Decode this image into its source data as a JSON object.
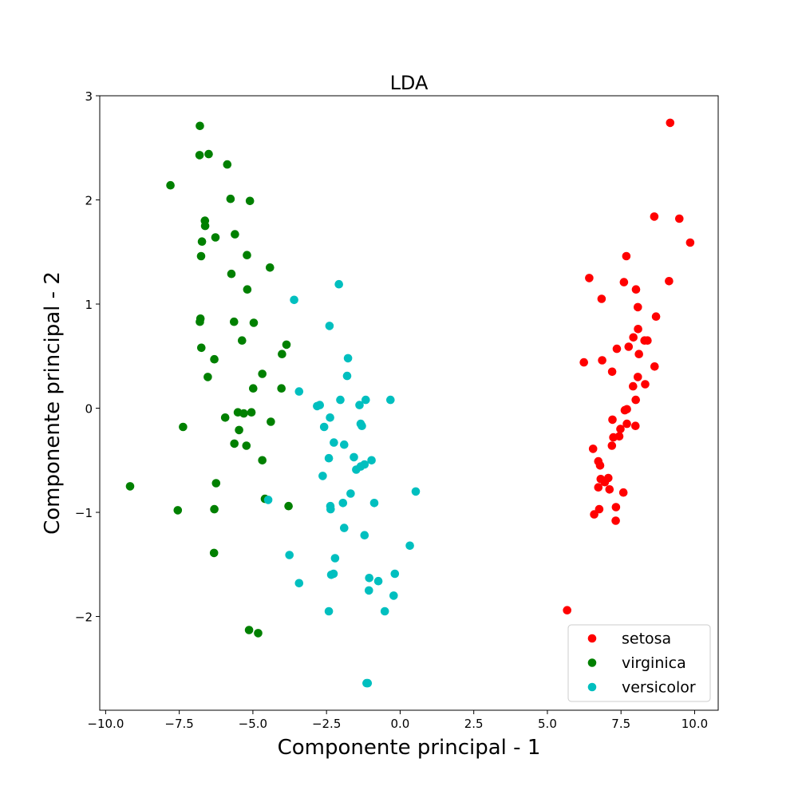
{
  "chart_data": {
    "type": "scatter",
    "title": "LDA",
    "xlabel": "Componente principal - 1",
    "ylabel": "Componente principal - 2",
    "xlim": [
      -10.2,
      10.8
    ],
    "ylim": [
      -2.9,
      3.0
    ],
    "xticks": [
      -10.0,
      -7.5,
      -5.0,
      -2.5,
      0.0,
      2.5,
      5.0,
      7.5,
      10.0
    ],
    "xtick_labels": [
      "−10.0",
      "−7.5",
      "−5.0",
      "−2.5",
      "0.0",
      "2.5",
      "5.0",
      "7.5",
      "10.0"
    ],
    "yticks": [
      -2,
      -1,
      0,
      1,
      2,
      3
    ],
    "ytick_labels": [
      "−2",
      "−1",
      "0",
      "1",
      "2",
      "3"
    ],
    "grid": false,
    "legend_position": "bottom-right",
    "series": [
      {
        "name": "setosa",
        "color": "#ff0000",
        "points": [
          [
            9.17,
            2.74
          ],
          [
            8.63,
            1.84
          ],
          [
            9.48,
            1.82
          ],
          [
            9.85,
            1.59
          ],
          [
            7.68,
            1.46
          ],
          [
            6.42,
            1.25
          ],
          [
            7.6,
            1.21
          ],
          [
            9.13,
            1.22
          ],
          [
            8.01,
            1.14
          ],
          [
            6.84,
            1.05
          ],
          [
            8.07,
            0.97
          ],
          [
            8.69,
            0.88
          ],
          [
            8.08,
            0.76
          ],
          [
            7.92,
            0.68
          ],
          [
            8.3,
            0.65
          ],
          [
            8.4,
            0.65
          ],
          [
            7.36,
            0.57
          ],
          [
            7.76,
            0.59
          ],
          [
            8.11,
            0.52
          ],
          [
            6.86,
            0.46
          ],
          [
            6.24,
            0.44
          ],
          [
            8.64,
            0.4
          ],
          [
            7.2,
            0.35
          ],
          [
            8.07,
            0.3
          ],
          [
            8.32,
            0.23
          ],
          [
            7.91,
            0.21
          ],
          [
            8.0,
            0.08
          ],
          [
            7.63,
            -0.02
          ],
          [
            7.7,
            -0.01
          ],
          [
            7.21,
            -0.11
          ],
          [
            7.7,
            -0.15
          ],
          [
            7.99,
            -0.17
          ],
          [
            7.48,
            -0.2
          ],
          [
            7.24,
            -0.28
          ],
          [
            7.44,
            -0.27
          ],
          [
            7.19,
            -0.36
          ],
          [
            6.55,
            -0.39
          ],
          [
            6.73,
            -0.51
          ],
          [
            6.79,
            -0.55
          ],
          [
            7.07,
            -0.67
          ],
          [
            6.81,
            -0.68
          ],
          [
            6.95,
            -0.71
          ],
          [
            6.73,
            -0.76
          ],
          [
            7.11,
            -0.78
          ],
          [
            7.58,
            -0.81
          ],
          [
            6.76,
            -0.97
          ],
          [
            7.33,
            -0.95
          ],
          [
            6.59,
            -1.02
          ],
          [
            7.32,
            -1.08
          ],
          [
            5.67,
            -1.94
          ]
        ]
      },
      {
        "name": "virginica",
        "color": "#008000",
        "points": [
          [
            -6.8,
            2.71
          ],
          [
            -6.5,
            2.44
          ],
          [
            -6.81,
            2.43
          ],
          [
            -5.87,
            2.34
          ],
          [
            -7.8,
            2.14
          ],
          [
            -5.76,
            2.01
          ],
          [
            -5.1,
            1.99
          ],
          [
            -6.63,
            1.8
          ],
          [
            -6.62,
            1.75
          ],
          [
            -5.61,
            1.67
          ],
          [
            -6.27,
            1.64
          ],
          [
            -6.73,
            1.6
          ],
          [
            -5.2,
            1.47
          ],
          [
            -6.76,
            1.46
          ],
          [
            -4.42,
            1.35
          ],
          [
            -5.73,
            1.29
          ],
          [
            -5.19,
            1.14
          ],
          [
            -6.78,
            0.86
          ],
          [
            -6.8,
            0.83
          ],
          [
            -5.64,
            0.83
          ],
          [
            -4.97,
            0.82
          ],
          [
            -5.37,
            0.65
          ],
          [
            -3.86,
            0.61
          ],
          [
            -6.75,
            0.58
          ],
          [
            -4.01,
            0.52
          ],
          [
            -6.31,
            0.47
          ],
          [
            -4.68,
            0.33
          ],
          [
            -6.53,
            0.3
          ],
          [
            -4.99,
            0.19
          ],
          [
            -4.03,
            0.19
          ],
          [
            -5.94,
            -0.09
          ],
          [
            -5.51,
            -0.04
          ],
          [
            -5.31,
            -0.05
          ],
          [
            -5.05,
            -0.04
          ],
          [
            -4.39,
            -0.13
          ],
          [
            -7.37,
            -0.18
          ],
          [
            -5.47,
            -0.21
          ],
          [
            -5.63,
            -0.34
          ],
          [
            -5.22,
            -0.36
          ],
          [
            -4.68,
            -0.5
          ],
          [
            -6.25,
            -0.72
          ],
          [
            -9.17,
            -0.75
          ],
          [
            -4.59,
            -0.87
          ],
          [
            -3.79,
            -0.94
          ],
          [
            -7.55,
            -0.98
          ],
          [
            -6.31,
            -0.97
          ],
          [
            -6.32,
            -1.39
          ],
          [
            -5.13,
            -2.13
          ],
          [
            -4.82,
            -2.16
          ]
        ]
      },
      {
        "name": "versicolor",
        "color": "#00bfbf",
        "points": [
          [
            -2.08,
            1.19
          ],
          [
            -3.6,
            1.04
          ],
          [
            -2.4,
            0.79
          ],
          [
            -1.77,
            0.48
          ],
          [
            -1.8,
            0.31
          ],
          [
            -3.43,
            0.16
          ],
          [
            -0.33,
            0.08
          ],
          [
            -1.17,
            0.08
          ],
          [
            -2.03,
            0.08
          ],
          [
            -2.73,
            0.03
          ],
          [
            -2.82,
            0.02
          ],
          [
            -1.38,
            0.03
          ],
          [
            -2.38,
            -0.09
          ],
          [
            -1.34,
            -0.15
          ],
          [
            -1.3,
            -0.17
          ],
          [
            -2.58,
            -0.18
          ],
          [
            -2.25,
            -0.33
          ],
          [
            -1.9,
            -0.35
          ],
          [
            -1.57,
            -0.47
          ],
          [
            -2.42,
            -0.48
          ],
          [
            -0.97,
            -0.5
          ],
          [
            -1.21,
            -0.54
          ],
          [
            -1.34,
            -0.56
          ],
          [
            -1.49,
            -0.59
          ],
          [
            -2.63,
            -0.65
          ],
          [
            0.53,
            -0.8
          ],
          [
            -1.68,
            -0.82
          ],
          [
            -4.48,
            -0.88
          ],
          [
            -0.88,
            -0.91
          ],
          [
            -1.94,
            -0.91
          ],
          [
            -2.37,
            -0.94
          ],
          [
            -2.36,
            -0.97
          ],
          [
            -1.9,
            -1.15
          ],
          [
            -1.21,
            -1.22
          ],
          [
            0.33,
            -1.32
          ],
          [
            -3.76,
            -1.41
          ],
          [
            -2.21,
            -1.44
          ],
          [
            -0.18,
            -1.59
          ],
          [
            -2.26,
            -1.59
          ],
          [
            -2.34,
            -1.6
          ],
          [
            -1.05,
            -1.63
          ],
          [
            -0.74,
            -1.66
          ],
          [
            -3.43,
            -1.68
          ],
          [
            -1.06,
            -1.75
          ],
          [
            -0.22,
            -1.8
          ],
          [
            -2.42,
            -1.95
          ],
          [
            -0.52,
            -1.95
          ],
          [
            -1.1,
            -2.64
          ],
          [
            -1.14,
            -2.64
          ]
        ]
      }
    ]
  }
}
